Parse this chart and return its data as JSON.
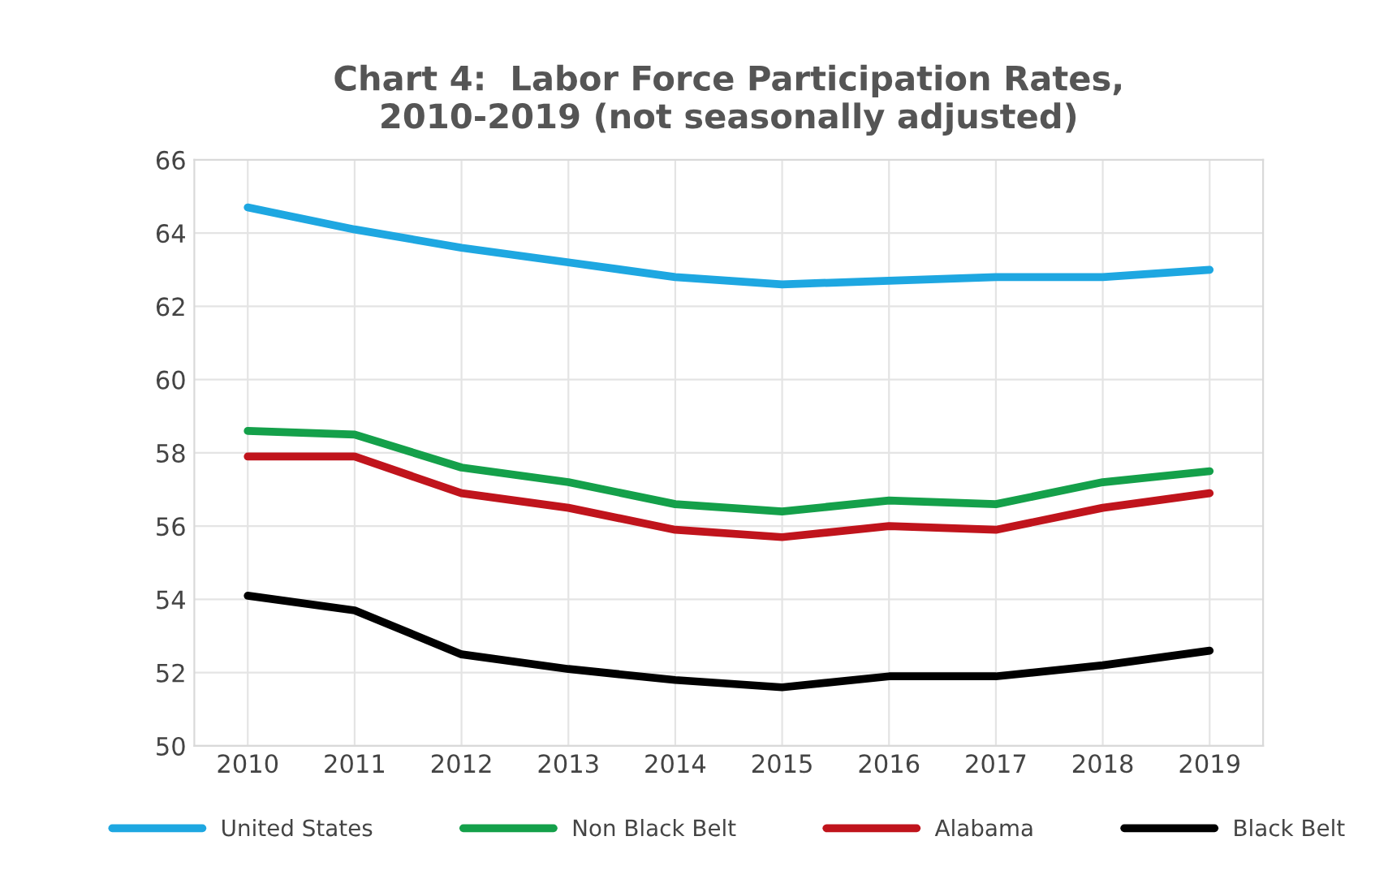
{
  "chart_data": {
    "type": "line",
    "title": "Chart 4:  Labor Force Participation Rates,\n2010-2019 (not seasonally adjusted)",
    "categories": [
      "2010",
      "2011",
      "2012",
      "2013",
      "2014",
      "2015",
      "2016",
      "2017",
      "2018",
      "2019"
    ],
    "series": [
      {
        "name": "United States",
        "color": "#1ea7e1",
        "values": [
          64.7,
          64.1,
          63.6,
          63.2,
          62.8,
          62.6,
          62.7,
          62.8,
          62.8,
          63.0
        ]
      },
      {
        "name": "Non Black Belt",
        "color": "#14a04a",
        "values": [
          58.6,
          58.5,
          57.6,
          57.2,
          56.6,
          56.4,
          56.7,
          56.6,
          57.2,
          57.5
        ]
      },
      {
        "name": "Alabama",
        "color": "#c0141c",
        "values": [
          57.9,
          57.9,
          56.9,
          56.5,
          55.9,
          55.7,
          56.0,
          55.9,
          56.5,
          56.9
        ]
      },
      {
        "name": "Black Belt",
        "color": "#000000",
        "values": [
          54.1,
          53.7,
          52.5,
          52.1,
          51.8,
          51.6,
          51.9,
          51.9,
          52.2,
          52.6
        ]
      }
    ],
    "ylim": [
      50,
      66
    ],
    "yticks": [
      50,
      52,
      54,
      56,
      58,
      60,
      62,
      64,
      66
    ],
    "grid": true,
    "legend": "bottom",
    "marker": "none",
    "line_style": "solid"
  }
}
